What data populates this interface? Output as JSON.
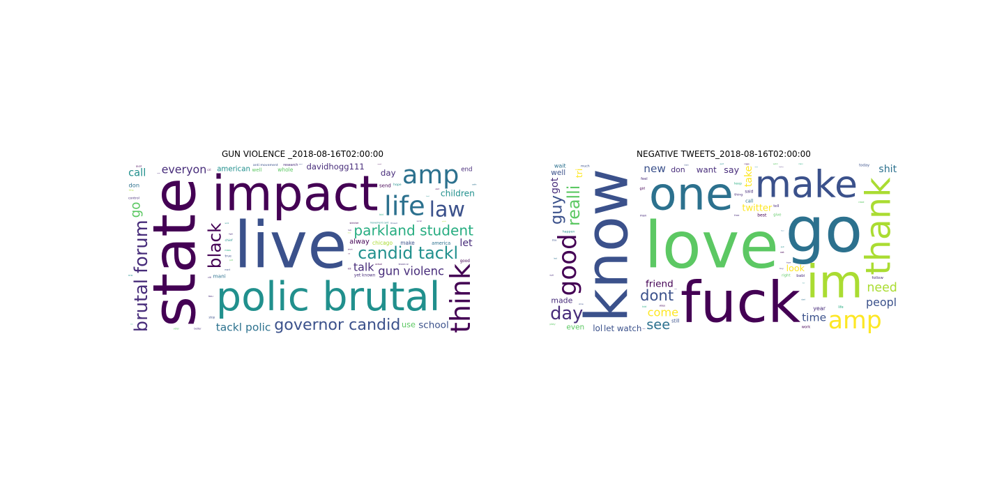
{
  "palette": [
    "#440154",
    "#472c7a",
    "#3b518b",
    "#2c718e",
    "#21908d",
    "#27ad81",
    "#5cc863",
    "#aadc32",
    "#fde725"
  ],
  "panels": [
    {
      "title": "GUN VIOLENCE _2018-08-16T02:00:00",
      "words": [
        {
          "text": "live",
          "w": 100,
          "c": "#3b518b"
        },
        {
          "text": "impact",
          "w": 95,
          "c": "#440154"
        },
        {
          "text": "state",
          "w": 93,
          "c": "#440154"
        },
        {
          "text": "polic brutal",
          "w": 66,
          "c": "#21908d"
        },
        {
          "text": "parkland student",
          "w": 58,
          "c": "#27ad81"
        },
        {
          "text": "candid tackl",
          "w": 55,
          "c": "#21908d"
        },
        {
          "text": "governor candid",
          "w": 52,
          "c": "#3b518b"
        },
        {
          "text": "think",
          "w": 48,
          "c": "#440154"
        },
        {
          "text": "life",
          "w": 47,
          "c": "#2c718e"
        },
        {
          "text": "law",
          "w": 46,
          "c": "#3b518b"
        },
        {
          "text": "amp",
          "w": 45,
          "c": "#2c718e"
        },
        {
          "text": "gun violenc",
          "w": 40,
          "c": "#472c7a"
        },
        {
          "text": "brutal forum",
          "w": 40,
          "c": "#472c7a"
        },
        {
          "text": "tackl polic",
          "w": 38,
          "c": "#2c718e"
        },
        {
          "text": "davidhogg111",
          "w": 36,
          "c": "#472c7a"
        },
        {
          "text": "school",
          "w": 34,
          "c": "#3b518b"
        },
        {
          "text": "everyon",
          "w": 32,
          "c": "#472c7a"
        },
        {
          "text": "chicago",
          "w": 30,
          "c": "#aadc32"
        },
        {
          "text": "black",
          "w": 32,
          "c": "#440154"
        },
        {
          "text": "talk",
          "w": 32,
          "c": "#472c7a"
        },
        {
          "text": "children",
          "w": 31,
          "c": "#21908d"
        },
        {
          "text": "american",
          "w": 32,
          "c": "#21908d"
        },
        {
          "text": "alway",
          "w": 31,
          "c": "#440154"
        },
        {
          "text": "make",
          "w": 30,
          "c": "#3b518b"
        },
        {
          "text": "whole",
          "w": 30,
          "c": "#5cc863"
        },
        {
          "text": "time vote",
          "w": 29,
          "c": "#21908d"
        },
        {
          "text": "mani",
          "w": 29,
          "c": "#2c718e"
        },
        {
          "text": "call",
          "w": 30,
          "c": "#21908d"
        },
        {
          "text": "day",
          "w": 30,
          "c": "#472c7a"
        },
        {
          "text": "go",
          "w": 30,
          "c": "#5cc863"
        },
        {
          "text": "use",
          "w": 29,
          "c": "#5cc863"
        },
        {
          "text": "let",
          "w": 29,
          "c": "#472c7a"
        },
        {
          "text": "send",
          "w": 28,
          "c": "#440154"
        },
        {
          "text": "death",
          "w": 29,
          "c": "#21908d"
        },
        {
          "text": "end",
          "w": 28,
          "c": "#472c7a"
        },
        {
          "text": "america",
          "w": 27,
          "c": "#2c718e"
        },
        {
          "text": "well",
          "w": 28,
          "c": "#5cc863"
        },
        {
          "text": "yet known",
          "w": 20,
          "c": "#472c7a"
        },
        {
          "text": "anti movement",
          "w": 20,
          "c": "#3b518b"
        },
        {
          "text": "longterm futur",
          "w": 20,
          "c": "#472c7a"
        },
        {
          "text": "cant yet",
          "w": 19,
          "c": "#440154"
        },
        {
          "text": "inexcus governor",
          "w": 19,
          "c": "#3b518b"
        },
        {
          "text": "student anti",
          "w": 19,
          "c": "#440154"
        },
        {
          "text": "research",
          "w": 17,
          "c": "#472c7a"
        },
        {
          "text": "hope",
          "w": 16,
          "c": "#21908d"
        },
        {
          "text": "good",
          "w": 16,
          "c": "#440154"
        },
        {
          "text": "stricter",
          "w": 16,
          "c": "#440154"
        },
        {
          "text": "control",
          "w": 16,
          "c": "#472c7a"
        },
        {
          "text": "true",
          "w": 16,
          "c": "#3b518b"
        },
        {
          "text": "don",
          "w": 15,
          "c": "#2c718e"
        },
        {
          "text": "better",
          "w": 15,
          "c": "#472c7a"
        },
        {
          "text": "movement cant",
          "w": 15,
          "c": "#21908d"
        },
        {
          "text": "marii",
          "w": 14,
          "c": "#3b518b"
        },
        {
          "text": "known ar",
          "w": 14,
          "c": "#472c7a"
        },
        {
          "text": "actual",
          "w": 14,
          "c": "#440154"
        },
        {
          "text": "homicid",
          "w": 14,
          "c": "#2c718e"
        },
        {
          "text": "voter",
          "w": 14,
          "c": "#5cc863"
        },
        {
          "text": "chief",
          "w": 13,
          "c": "#21908d"
        },
        {
          "text": "issu",
          "w": 13,
          "c": "#472c7a"
        },
        {
          "text": "thread",
          "w": 13,
          "c": "#3b518b"
        },
        {
          "text": "quot",
          "w": 13,
          "c": "#440154"
        },
        {
          "text": "mass",
          "w": 12,
          "c": "#27ad81"
        },
        {
          "text": "social",
          "w": 12,
          "c": "#472c7a"
        },
        {
          "text": "stop",
          "w": 12,
          "c": "#3b518b"
        },
        {
          "text": "thing",
          "w": 12,
          "c": "#aadc32"
        },
        {
          "text": "today",
          "w": 12,
          "c": "#21908d"
        },
        {
          "text": "fight",
          "w": 12,
          "c": "#472c7a"
        },
        {
          "text": "news",
          "w": 12,
          "c": "#5cc863"
        },
        {
          "text": "safe",
          "w": 11,
          "c": "#2c718e"
        },
        {
          "text": "shoot",
          "w": 11,
          "c": "#440154"
        },
        {
          "text": "protest",
          "w": 11,
          "c": "#3b518b"
        },
        {
          "text": "work",
          "w": 11,
          "c": "#21908d"
        },
        {
          "text": "help",
          "w": 11,
          "c": "#472c7a"
        },
        {
          "text": "polit",
          "w": 11,
          "c": "#5cc863"
        },
        {
          "text": "elect",
          "w": 11,
          "c": "#440154"
        },
        {
          "text": "kid",
          "w": 11,
          "c": "#27ad81"
        },
        {
          "text": "mind",
          "w": 11,
          "c": "#3b518b"
        },
        {
          "text": "nra",
          "w": 11,
          "c": "#21908d"
        },
        {
          "text": "citi",
          "w": 10,
          "c": "#472c7a"
        },
        {
          "text": "public",
          "w": 10,
          "c": "#aadc32"
        },
        {
          "text": "peopl",
          "w": 10,
          "c": "#2c718e"
        },
        {
          "text": "need",
          "w": 10,
          "c": "#440154"
        },
        {
          "text": "want",
          "w": 10,
          "c": "#3b518b"
        },
        {
          "text": "week",
          "w": 10,
          "c": "#27ad81"
        },
        {
          "text": "vote",
          "w": 10,
          "c": "#472c7a"
        },
        {
          "text": "lead",
          "w": 10,
          "c": "#21908d"
        },
        {
          "text": "great",
          "w": 10,
          "c": "#5cc863"
        },
        {
          "text": "cri",
          "w": 10,
          "c": "#440154"
        },
        {
          "text": "parent",
          "w": 10,
          "c": "#3b518b"
        },
        {
          "text": "dead",
          "w": 10,
          "c": "#2c718e"
        },
        {
          "text": "town",
          "w": 10,
          "c": "#472c7a"
        },
        {
          "text": "young",
          "w": 10,
          "c": "#21908d"
        },
        {
          "text": "kill",
          "w": 10,
          "c": "#440154"
        },
        {
          "text": "hear",
          "w": 10,
          "c": "#aadc32"
        },
        {
          "text": "law",
          "w": 10,
          "c": "#27ad81"
        },
        {
          "text": "fund",
          "w": 10,
          "c": "#3b518b"
        },
        {
          "text": "pass",
          "w": 10,
          "c": "#472c7a"
        },
        {
          "text": "club",
          "w": 10,
          "c": "#5cc863"
        },
        {
          "text": "plan",
          "w": 10,
          "c": "#21908d"
        },
        {
          "text": "tell",
          "w": 10,
          "c": "#440154"
        }
      ]
    },
    {
      "title": "NEGATIVE TWEETS_2018-08-16T02:00:00",
      "words": [
        {
          "text": "love",
          "w": 100,
          "c": "#5cc863"
        },
        {
          "text": "go",
          "w": 97,
          "c": "#2c718e"
        },
        {
          "text": "know",
          "w": 92,
          "c": "#3b518b"
        },
        {
          "text": "fuck",
          "w": 90,
          "c": "#440154"
        },
        {
          "text": "one",
          "w": 90,
          "c": "#2c718e"
        },
        {
          "text": "make",
          "w": 76,
          "c": "#3b518b"
        },
        {
          "text": "im",
          "w": 74,
          "c": "#aadc32"
        },
        {
          "text": "thank",
          "w": 58,
          "c": "#aadc32"
        },
        {
          "text": "amp",
          "w": 52,
          "c": "#fde725"
        },
        {
          "text": "dont",
          "w": 50,
          "c": "#3b518b"
        },
        {
          "text": "come",
          "w": 48,
          "c": "#fde725"
        },
        {
          "text": "twitter",
          "w": 48,
          "c": "#fde725"
        },
        {
          "text": "good",
          "w": 44,
          "c": "#440154"
        },
        {
          "text": "need",
          "w": 42,
          "c": "#aadc32"
        },
        {
          "text": "day",
          "w": 40,
          "c": "#472c7a"
        },
        {
          "text": "time",
          "w": 38,
          "c": "#3b518b"
        },
        {
          "text": "see",
          "w": 38,
          "c": "#2c718e"
        },
        {
          "text": "guy",
          "w": 36,
          "c": "#3b518b"
        },
        {
          "text": "friend",
          "w": 34,
          "c": "#440154"
        },
        {
          "text": "look",
          "w": 32,
          "c": "#fde725"
        },
        {
          "text": "peopl",
          "w": 32,
          "c": "#3b518b"
        },
        {
          "text": "realli",
          "w": 31,
          "c": "#5cc863"
        },
        {
          "text": "say",
          "w": 32,
          "c": "#472c7a"
        },
        {
          "text": "want",
          "w": 30,
          "c": "#472c7a"
        },
        {
          "text": "new",
          "w": 31,
          "c": "#3b518b"
        },
        {
          "text": "let watch",
          "w": 30,
          "c": "#3b518b"
        },
        {
          "text": "shit",
          "w": 29,
          "c": "#2c718e"
        },
        {
          "text": "take",
          "w": 29,
          "c": "#fde725"
        },
        {
          "text": "made",
          "w": 28,
          "c": "#472c7a"
        },
        {
          "text": "don",
          "w": 28,
          "c": "#472c7a"
        },
        {
          "text": "even",
          "w": 27,
          "c": "#5cc863"
        },
        {
          "text": "well",
          "w": 27,
          "c": "#3b518b"
        },
        {
          "text": "tri",
          "w": 26,
          "c": "#fde725"
        },
        {
          "text": "year",
          "w": 26,
          "c": "#472c7a"
        },
        {
          "text": "wait",
          "w": 26,
          "c": "#2c718e"
        },
        {
          "text": "best",
          "w": 25,
          "c": "#440154"
        },
        {
          "text": "lol",
          "w": 25,
          "c": "#3b518b"
        },
        {
          "text": "got",
          "w": 24,
          "c": "#472c7a"
        },
        {
          "text": "said",
          "w": 24,
          "c": "#472c7a"
        },
        {
          "text": "babi",
          "w": 23,
          "c": "#472c7a"
        },
        {
          "text": "give",
          "w": 22,
          "c": "#5cc863"
        },
        {
          "text": "right",
          "w": 22,
          "c": "#5cc863"
        },
        {
          "text": "today",
          "w": 22,
          "c": "#3b518b"
        },
        {
          "text": "call",
          "w": 22,
          "c": "#2c718e"
        },
        {
          "text": "happen",
          "w": 20,
          "c": "#21908d"
        },
        {
          "text": "thing",
          "w": 20,
          "c": "#472c7a"
        },
        {
          "text": "keep",
          "w": 19,
          "c": "#27ad81"
        },
        {
          "text": "follow",
          "w": 19,
          "c": "#472c7a"
        },
        {
          "text": "never",
          "w": 18,
          "c": "#5cc863"
        },
        {
          "text": "work",
          "w": 18,
          "c": "#440154"
        },
        {
          "text": "still",
          "w": 18,
          "c": "#3b518b"
        },
        {
          "text": "man",
          "w": 18,
          "c": "#472c7a"
        },
        {
          "text": "feel",
          "w": 18,
          "c": "#472c7a"
        },
        {
          "text": "girl",
          "w": 17,
          "c": "#440154"
        },
        {
          "text": "play",
          "w": 17,
          "c": "#5cc863"
        },
        {
          "text": "life",
          "w": 17,
          "c": "#27ad81"
        },
        {
          "text": "free",
          "w": 16,
          "c": "#472c7a"
        },
        {
          "text": "much",
          "w": 16,
          "c": "#3b518b"
        },
        {
          "text": "better",
          "w": 16,
          "c": "#2c718e"
        },
        {
          "text": "automat check",
          "w": 15,
          "c": "#21908d"
        },
        {
          "text": "tell",
          "w": 15,
          "c": "#472c7a"
        },
        {
          "text": "video",
          "w": 14,
          "c": "#440154"
        },
        {
          "text": "stay",
          "w": 14,
          "c": "#3b518b"
        },
        {
          "text": "kid",
          "w": 14,
          "c": "#27ad81"
        },
        {
          "text": "trump",
          "w": 13,
          "c": "#472c7a"
        },
        {
          "text": "put",
          "w": 13,
          "c": "#21908d"
        },
        {
          "text": "read",
          "w": 13,
          "c": "#5cc863"
        },
        {
          "text": "check",
          "w": 13,
          "c": "#440154"
        },
        {
          "text": "done",
          "w": 13,
          "c": "#3b518b"
        },
        {
          "text": "hope",
          "w": 12,
          "c": "#472c7a"
        },
        {
          "text": "last",
          "w": 12,
          "c": "#2c718e"
        },
        {
          "text": "nigga",
          "w": 12,
          "c": "#440154"
        },
        {
          "text": "part",
          "w": 12,
          "c": "#21908d"
        },
        {
          "text": "song",
          "w": 12,
          "c": "#472c7a"
        },
        {
          "text": "show",
          "w": 12,
          "c": "#3b518b"
        },
        {
          "text": "eat",
          "w": 12,
          "c": "#440154"
        },
        {
          "text": "food",
          "w": 12,
          "c": "#472c7a"
        },
        {
          "text": "mani",
          "w": 11,
          "c": "#27ad81"
        },
        {
          "text": "black",
          "w": 11,
          "c": "#3b518b"
        },
        {
          "text": "buy",
          "w": 11,
          "c": "#472c7a"
        },
        {
          "text": "watch",
          "w": 11,
          "c": "#5cc863"
        },
        {
          "text": "start",
          "w": 11,
          "c": "#2c718e"
        },
        {
          "text": "money",
          "w": 11,
          "c": "#440154"
        },
        {
          "text": "night",
          "w": 11,
          "c": "#472c7a"
        },
        {
          "text": "pictur",
          "w": 11,
          "c": "#aadc32"
        },
        {
          "text": "word",
          "w": 11,
          "c": "#3b518b"
        },
        {
          "text": "sure",
          "w": 10,
          "c": "#21908d"
        },
        {
          "text": "believ",
          "w": 10,
          "c": "#472c7a"
        },
        {
          "text": "cant",
          "w": 10,
          "c": "#5cc863"
        },
        {
          "text": "understand",
          "w": 10,
          "c": "#440154"
        },
        {
          "text": "real",
          "w": 10,
          "c": "#3b518b"
        },
        {
          "text": "face",
          "w": 10,
          "c": "#2c718e"
        },
        {
          "text": "run",
          "w": 10,
          "c": "#472c7a"
        },
        {
          "text": "live",
          "w": 10,
          "c": "#21908d"
        },
        {
          "text": "lose",
          "w": 10,
          "c": "#440154"
        },
        {
          "text": "tweet",
          "w": 10,
          "c": "#27ad81"
        },
        {
          "text": "stop",
          "w": 10,
          "c": "#3b518b"
        },
        {
          "text": "two",
          "w": 10,
          "c": "#472c7a"
        },
        {
          "text": "love",
          "w": 10,
          "c": "#5cc863"
        },
        {
          "text": "hate",
          "w": 10,
          "c": "#440154"
        },
        {
          "text": "mood",
          "w": 10,
          "c": "#2c718e"
        }
      ]
    }
  ]
}
